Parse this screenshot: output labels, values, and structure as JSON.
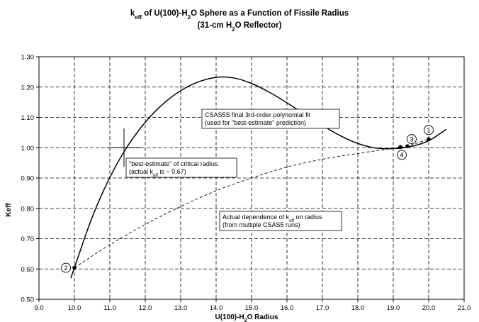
{
  "chart_data": {
    "type": "line",
    "title": "k<sub>eff</sub> of U(100)-H<sub>2</sub>O Sphere as a Function of Fissile Radius",
    "title_parts": [
      {
        "t": "k",
        "s": ""
      },
      {
        "t": "eff",
        "s": "sub"
      },
      {
        "t": " of U(100)-H",
        "s": ""
      },
      {
        "t": "2",
        "s": "sub"
      },
      {
        "t": "O Sphere as a Function of Fissile Radius",
        "s": ""
      }
    ],
    "subtitle_parts": [
      {
        "t": "(31-cm H",
        "s": ""
      },
      {
        "t": "2",
        "s": "sub"
      },
      {
        "t": "O Reflector)",
        "s": ""
      }
    ],
    "xlabel_parts": [
      {
        "t": "U(100)-H",
        "s": ""
      },
      {
        "t": "2",
        "s": "sub"
      },
      {
        "t": "O Radius",
        "s": ""
      }
    ],
    "ylabel": "Keff",
    "xlim": [
      9.0,
      21.0
    ],
    "ylim": [
      0.5,
      1.3
    ],
    "x_ticks": [
      "9.0",
      "10.0",
      "11.0",
      "12.0",
      "13.0",
      "14.0",
      "15.0",
      "16.0",
      "17.0",
      "18.0",
      "19.0",
      "20.0",
      "21.0"
    ],
    "y_ticks": [
      "0.50",
      "0.60",
      "0.70",
      "0.80",
      "0.90",
      "1.00",
      "1.10",
      "1.20",
      "1.30"
    ],
    "grid": true,
    "series": [
      {
        "style": "solid",
        "x": [
          9.9,
          10.0,
          10.5,
          11.0,
          11.5,
          12.0,
          12.5,
          13.0,
          13.5,
          14.0,
          14.5,
          15.0,
          15.5,
          16.0,
          16.5,
          17.0,
          17.5,
          18.0,
          18.5,
          19.0,
          19.5,
          20.0,
          20.5
        ],
        "y": [
          0.57,
          0.604,
          0.77,
          0.902,
          1.005,
          1.084,
          1.144,
          1.188,
          1.217,
          1.232,
          1.23,
          1.212,
          1.183,
          1.148,
          1.11,
          1.073,
          1.04,
          1.014,
          0.999,
          0.997,
          1.004,
          1.023,
          1.061
        ]
      },
      {
        "style": "dashed",
        "x": [
          10.0,
          11.0,
          12.0,
          13.0,
          14.0,
          15.0,
          16.0,
          17.0,
          18.0,
          19.0,
          19.2,
          19.4,
          20.0
        ],
        "y": [
          0.604,
          0.68,
          0.747,
          0.806,
          0.858,
          0.9,
          0.936,
          0.962,
          0.981,
          0.998,
          1.002,
          1.005,
          1.028
        ]
      }
    ],
    "points": [
      {
        "label": "1",
        "x": 20.0,
        "y": 1.028
      },
      {
        "label": "2",
        "x": 10.0,
        "y": 0.604
      },
      {
        "label": "3",
        "x": 19.4,
        "y": 1.005
      },
      {
        "label": "4",
        "x": 19.2,
        "y": 1.002
      }
    ],
    "crosshair": {
      "x": 11.4,
      "y": 1.0
    },
    "annotations": [
      {
        "lines": [
          [
            {
              "t": "CSAS5S final 3rd-order polynomial fit",
              "s": ""
            }
          ],
          [
            {
              "t": "(used for \"best-estimate\" prediction)",
              "s": ""
            }
          ]
        ]
      },
      {
        "lines": [
          [
            {
              "t": "\"best-estimate\" of critical radius",
              "s": ""
            }
          ],
          [
            {
              "t": "(actual k",
              "s": ""
            },
            {
              "t": "eff",
              "s": "sub"
            },
            {
              "t": " is ~ 0.67)",
              "s": ""
            }
          ]
        ]
      },
      {
        "lines": [
          [
            {
              "t": "Actual dependence of k",
              "s": ""
            },
            {
              "t": "eff",
              "s": "sub"
            },
            {
              "t": " on radius",
              "s": ""
            }
          ],
          [
            {
              "t": "(from multiple CSAS5 runs)",
              "s": ""
            }
          ]
        ]
      }
    ]
  }
}
